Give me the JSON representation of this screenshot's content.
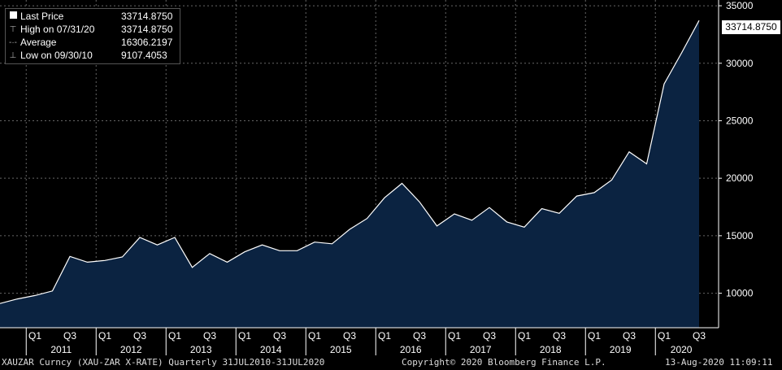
{
  "legend": {
    "last_label": "Last Price",
    "last_value": "33714.8750",
    "high_label": "High on 07/31/20",
    "high_value": "33714.8750",
    "avg_label": "Average",
    "avg_value": "16306.2197",
    "low_label": "Low on 09/30/10",
    "low_value": "9107.4053"
  },
  "last_tag": "33714.8750",
  "footer": {
    "left": "XAUZAR Curncy (XAU-ZAR X-RATE)  Quarterly 31JUL2010-31JUL2020",
    "center": "Copyright© 2020 Bloomberg Finance L.P.",
    "right": "13-Aug-2020 11:09:11"
  },
  "colors": {
    "background": "#000000",
    "fill": "#0b2341",
    "line": "#ffffff",
    "grid": "#666666"
  },
  "chart_data": {
    "type": "area",
    "ylim": [
      7000,
      35500
    ],
    "yticks": [
      10000,
      15000,
      20000,
      25000,
      30000,
      35000
    ],
    "grid": true,
    "legend_position": "top-left",
    "x_quarter_labels": [
      "Q1",
      "Q3",
      "Q1",
      "Q3",
      "Q1",
      "Q3",
      "Q1",
      "Q3",
      "Q1",
      "Q3",
      "Q1",
      "Q3",
      "Q1",
      "Q3",
      "Q1",
      "Q3",
      "Q1",
      "Q3",
      "Q1",
      "Q3"
    ],
    "x_year_labels": [
      "2011",
      "2012",
      "2013",
      "2014",
      "2015",
      "2016",
      "2017",
      "2018",
      "2019",
      "2020"
    ],
    "x": [
      "2010Q3",
      "2010Q4",
      "2011Q1",
      "2011Q2",
      "2011Q3",
      "2011Q4",
      "2012Q1",
      "2012Q2",
      "2012Q3",
      "2012Q4",
      "2013Q1",
      "2013Q2",
      "2013Q3",
      "2013Q4",
      "2014Q1",
      "2014Q2",
      "2014Q3",
      "2014Q4",
      "2015Q1",
      "2015Q2",
      "2015Q3",
      "2015Q4",
      "2016Q1",
      "2016Q2",
      "2016Q3",
      "2016Q4",
      "2017Q1",
      "2017Q2",
      "2017Q3",
      "2017Q4",
      "2018Q1",
      "2018Q2",
      "2018Q3",
      "2018Q4",
      "2019Q1",
      "2019Q2",
      "2019Q3",
      "2019Q4",
      "2020Q1",
      "2020Q2",
      "2020Q3"
    ],
    "series": [
      {
        "values": [
          9107,
          9500,
          9800,
          10200,
          13200,
          12700,
          12850,
          13150,
          14850,
          14200,
          14850,
          12250,
          13450,
          12700,
          13600,
          14200,
          13700,
          13700,
          14450,
          14300,
          15550,
          16500,
          18300,
          19550,
          17950,
          15850,
          16900,
          16350,
          17450,
          16200,
          15750,
          17350,
          16950,
          18450,
          18750,
          19850,
          22300,
          21250,
          28200,
          30900,
          33714.875
        ]
      }
    ]
  }
}
